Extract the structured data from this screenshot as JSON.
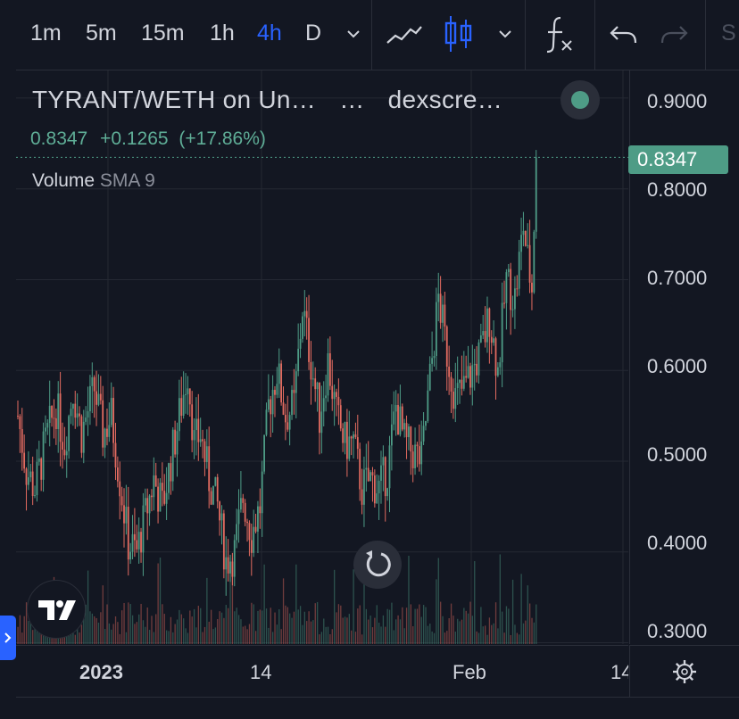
{
  "toolbar": {
    "timeframes": [
      "1m",
      "5m",
      "15m",
      "1h",
      "4h",
      "D"
    ],
    "active_timeframe": "4h",
    "partial_label": "S",
    "icons": [
      "chevron-down-icon",
      "line-chart-icon",
      "candles-icon",
      "chevron-down-icon",
      "fx-indicators-icon",
      "undo-icon",
      "redo-icon"
    ]
  },
  "legend": {
    "title": "TYRANT/WETH on Un…",
    "dots": "…",
    "source": "dexscre…",
    "last": "0.8347",
    "change": "+0.1265",
    "change_pct": "(+17.86%)",
    "volume_label": "Volume",
    "volume_sma": "SMA 9"
  },
  "price_axis": {
    "labels": [
      "0.9000",
      "0.8000",
      "0.7000",
      "0.6000",
      "0.5000",
      "0.4000",
      "0.3000"
    ],
    "last_badge": "0.8347"
  },
  "time_axis": {
    "labels": [
      "2023",
      "14",
      "Feb",
      "14"
    ]
  },
  "colors": {
    "background": "#131722",
    "up": "#4e9c86",
    "down": "#e36b60",
    "accent": "#2962ff",
    "grid": "#242833"
  },
  "chart_data": {
    "type": "candlestick",
    "title": "TYRANT/WETH on Un…",
    "x_ticks": [
      "2023",
      "14",
      "Feb",
      "14"
    ],
    "ylim": [
      0.2985,
      0.9304
    ],
    "y_ticks": [
      0.3,
      0.4,
      0.5,
      0.6,
      0.7,
      0.8,
      0.9
    ],
    "last_price": 0.8347,
    "change": 0.1265,
    "change_pct": 17.86,
    "grid": true,
    "anchors": [
      [
        0,
        0.55
      ],
      [
        4,
        0.49
      ],
      [
        8,
        0.47
      ],
      [
        14,
        0.53
      ],
      [
        18,
        0.56
      ],
      [
        22,
        0.52
      ],
      [
        26,
        0.58
      ],
      [
        30,
        0.53
      ],
      [
        36,
        0.58
      ],
      [
        40,
        0.53
      ],
      [
        44,
        0.55
      ],
      [
        48,
        0.48
      ],
      [
        52,
        0.41
      ],
      [
        56,
        0.4
      ],
      [
        60,
        0.44
      ],
      [
        64,
        0.48
      ],
      [
        68,
        0.45
      ],
      [
        72,
        0.5
      ],
      [
        76,
        0.55
      ],
      [
        80,
        0.6
      ],
      [
        83,
        0.52
      ],
      [
        86,
        0.53
      ],
      [
        90,
        0.48
      ],
      [
        94,
        0.45
      ],
      [
        98,
        0.39
      ],
      [
        102,
        0.4
      ],
      [
        106,
        0.46
      ],
      [
        110,
        0.42
      ],
      [
        114,
        0.45
      ],
      [
        118,
        0.56
      ],
      [
        122,
        0.6
      ],
      [
        126,
        0.55
      ],
      [
        130,
        0.56
      ],
      [
        134,
        0.67
      ],
      [
        138,
        0.61
      ],
      [
        142,
        0.55
      ],
      [
        146,
        0.61
      ],
      [
        150,
        0.55
      ],
      [
        154,
        0.52
      ],
      [
        158,
        0.52
      ],
      [
        162,
        0.47
      ],
      [
        166,
        0.48
      ],
      [
        170,
        0.47
      ],
      [
        174,
        0.49
      ],
      [
        178,
        0.56
      ],
      [
        182,
        0.52
      ],
      [
        186,
        0.51
      ],
      [
        190,
        0.5
      ],
      [
        194,
        0.59
      ],
      [
        198,
        0.68
      ],
      [
        202,
        0.62
      ],
      [
        206,
        0.57
      ],
      [
        210,
        0.58
      ],
      [
        214,
        0.6
      ],
      [
        218,
        0.62
      ],
      [
        222,
        0.66
      ],
      [
        226,
        0.6
      ],
      [
        230,
        0.7
      ],
      [
        234,
        0.68
      ],
      [
        238,
        0.76
      ],
      [
        240,
        0.72
      ],
      [
        242,
        0.69
      ],
      [
        244,
        0.8347
      ]
    ],
    "candle_count": 245
  }
}
